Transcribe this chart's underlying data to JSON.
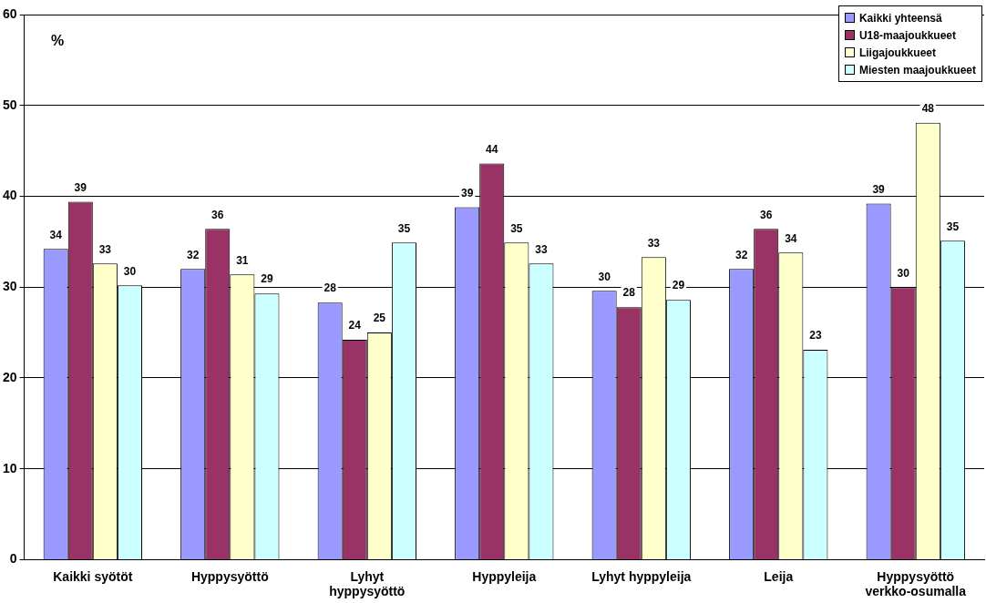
{
  "chart_data": {
    "type": "bar",
    "categories": [
      "Kaikki syötöt",
      "Hyppysyöttö",
      "Lyhyt hyppysyöttö",
      "Hyppyleija",
      "Lyhyt hyppyleija",
      "Leija",
      "Hyppysyöttö verkko-osumalla"
    ],
    "series": [
      {
        "name": "Kaikki yhteensä",
        "color": "#9999ff",
        "values": [
          34.2,
          32.0,
          28.3,
          38.8,
          29.6,
          32.0,
          39.2
        ],
        "value_labels": [
          "34",
          "32",
          "28",
          "39",
          "30",
          "32",
          "39"
        ]
      },
      {
        "name": "U18-maajoukkueet",
        "color": "#993366",
        "values": [
          39.4,
          36.4,
          24.2,
          43.6,
          27.8,
          36.4,
          30.0
        ],
        "value_labels": [
          "39",
          "36",
          "24",
          "44",
          "28",
          "36",
          "30"
        ]
      },
      {
        "name": "Liigajoukkueet",
        "color": "#ffffcc",
        "values": [
          32.6,
          31.4,
          25.0,
          34.9,
          33.3,
          33.8,
          48.1
        ],
        "value_labels": [
          "33",
          "31",
          "25",
          "35",
          "33",
          "34",
          "48"
        ]
      },
      {
        "name": "Miesten maajoukkueet",
        "color": "#ccffff",
        "values": [
          30.2,
          29.3,
          34.9,
          32.6,
          28.6,
          23.1,
          35.1
        ],
        "value_labels": [
          "30",
          "29",
          "35",
          "33",
          "29",
          "23",
          "35"
        ]
      }
    ],
    "ylim": [
      0,
      60
    ],
    "yticks": [
      0,
      10,
      20,
      30,
      40,
      50,
      60
    ],
    "grid": "y",
    "legend": "top right",
    "annotations": [
      "%"
    ]
  }
}
